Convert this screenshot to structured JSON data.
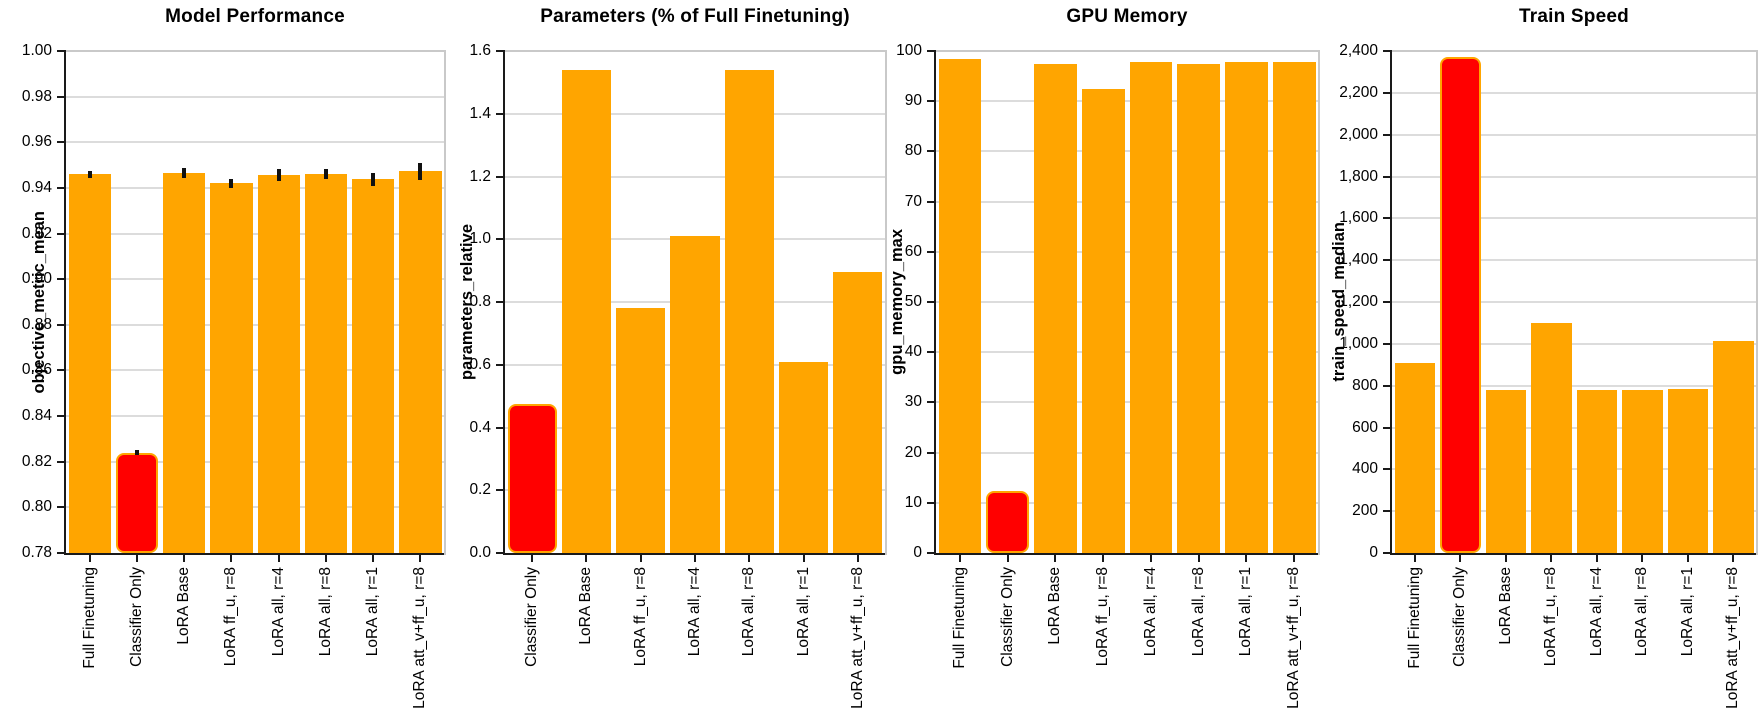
{
  "colors": {
    "bar": "#FFA500",
    "highlight_fill": "#FF0000",
    "highlight_border": "#FFA500",
    "grid": "#DCDCDC",
    "plot_border": "#C9C9C9",
    "axis": "#1A1A1A"
  },
  "chart_data": [
    {
      "type": "bar",
      "title": "Model Performance",
      "ylabel": "objective_metric_mean",
      "ylim": [
        0.78,
        1.0
      ],
      "grid": true,
      "legend": "none",
      "yticks": [
        {
          "v": 0.78,
          "label": "0.78"
        },
        {
          "v": 0.8,
          "label": "0.80"
        },
        {
          "v": 0.82,
          "label": "0.82"
        },
        {
          "v": 0.84,
          "label": "0.84"
        },
        {
          "v": 0.86,
          "label": "0.86"
        },
        {
          "v": 0.88,
          "label": "0.88"
        },
        {
          "v": 0.9,
          "label": "0.90"
        },
        {
          "v": 0.92,
          "label": "0.92"
        },
        {
          "v": 0.94,
          "label": "0.94"
        },
        {
          "v": 0.96,
          "label": "0.96"
        },
        {
          "v": 0.98,
          "label": "0.98"
        },
        {
          "v": 1.0,
          "label": "1.00"
        }
      ],
      "categories": [
        "Full Finetuning",
        "Classifier Only",
        "LoRA Base",
        "LoRA ff_u, r=8",
        "LoRA all, r=4",
        "LoRA all, r=8",
        "LoRA all, r=1",
        "LoRA att_v+ff_u, r=8"
      ],
      "values": [
        0.946,
        0.824,
        0.9465,
        0.942,
        0.9455,
        0.9463,
        0.9437,
        0.9472
      ],
      "errors": [
        0.0016,
        0.001,
        0.0022,
        0.002,
        0.0026,
        0.0022,
        0.003,
        0.0038
      ],
      "highlight_index": 1
    },
    {
      "type": "bar",
      "title": "Parameters (% of Full Finetuning)",
      "ylabel": "parameters_relative",
      "ylim": [
        0,
        1.6
      ],
      "grid": true,
      "legend": "none",
      "yticks": [
        {
          "v": 0.0,
          "label": "0.0"
        },
        {
          "v": 0.2,
          "label": "0.2"
        },
        {
          "v": 0.4,
          "label": "0.4"
        },
        {
          "v": 0.6,
          "label": "0.6"
        },
        {
          "v": 0.8,
          "label": "0.8"
        },
        {
          "v": 1.0,
          "label": "1.0"
        },
        {
          "v": 1.2,
          "label": "1.2"
        },
        {
          "v": 1.4,
          "label": "1.4"
        },
        {
          "v": 1.6,
          "label": "1.6"
        }
      ],
      "categories": [
        "Classifier Only",
        "LoRA Base",
        "LoRA ff_u, r=8",
        "LoRA all, r=4",
        "LoRA all, r=8",
        "LoRA all, r=1",
        "LoRA att_v+ff_u, r=8"
      ],
      "values": [
        0.475,
        1.54,
        0.78,
        1.01,
        1.54,
        0.61,
        0.895
      ],
      "errors": null,
      "highlight_index": 0
    },
    {
      "type": "bar",
      "title": "GPU Memory",
      "ylabel": "gpu_memory_max",
      "ylim": [
        0,
        100
      ],
      "grid": true,
      "legend": "none",
      "yticks": [
        {
          "v": 0,
          "label": "0"
        },
        {
          "v": 10,
          "label": "10"
        },
        {
          "v": 20,
          "label": "20"
        },
        {
          "v": 30,
          "label": "30"
        },
        {
          "v": 40,
          "label": "40"
        },
        {
          "v": 50,
          "label": "50"
        },
        {
          "v": 60,
          "label": "60"
        },
        {
          "v": 70,
          "label": "70"
        },
        {
          "v": 80,
          "label": "80"
        },
        {
          "v": 90,
          "label": "90"
        },
        {
          "v": 100,
          "label": "100"
        }
      ],
      "categories": [
        "Full Finetuning",
        "Classifier Only",
        "LoRA Base",
        "LoRA ff_u, r=8",
        "LoRA all, r=4",
        "LoRA all, r=8",
        "LoRA all, r=1",
        "LoRA att_v+ff_u, r=8"
      ],
      "values": [
        98.5,
        12.3,
        97.5,
        92.5,
        97.8,
        97.5,
        97.8,
        97.9
      ],
      "errors": null,
      "highlight_index": 1
    },
    {
      "type": "bar",
      "title": "Train Speed",
      "ylabel": "train_speed_median",
      "ylim": [
        0,
        2400
      ],
      "grid": true,
      "legend": "none",
      "yticks": [
        {
          "v": 0,
          "label": "0"
        },
        {
          "v": 200,
          "label": "200"
        },
        {
          "v": 400,
          "label": "400"
        },
        {
          "v": 600,
          "label": "600"
        },
        {
          "v": 800,
          "label": "800"
        },
        {
          "v": 1000,
          "label": "1,000"
        },
        {
          "v": 1200,
          "label": "1,200"
        },
        {
          "v": 1400,
          "label": "1,400"
        },
        {
          "v": 1600,
          "label": "1,600"
        },
        {
          "v": 1800,
          "label": "1,800"
        },
        {
          "v": 2000,
          "label": "2,000"
        },
        {
          "v": 2200,
          "label": "2,200"
        },
        {
          "v": 2400,
          "label": "2,400"
        }
      ],
      "categories": [
        "Full Finetuning",
        "Classifier Only",
        "LoRA Base",
        "LoRA ff_u, r=8",
        "LoRA all, r=4",
        "LoRA all, r=8",
        "LoRA all, r=1",
        "LoRA att_v+ff_u, r=8"
      ],
      "values": [
        910,
        2370,
        780,
        1100,
        779,
        778,
        782,
        1015
      ],
      "errors": null,
      "highlight_index": 1
    }
  ]
}
